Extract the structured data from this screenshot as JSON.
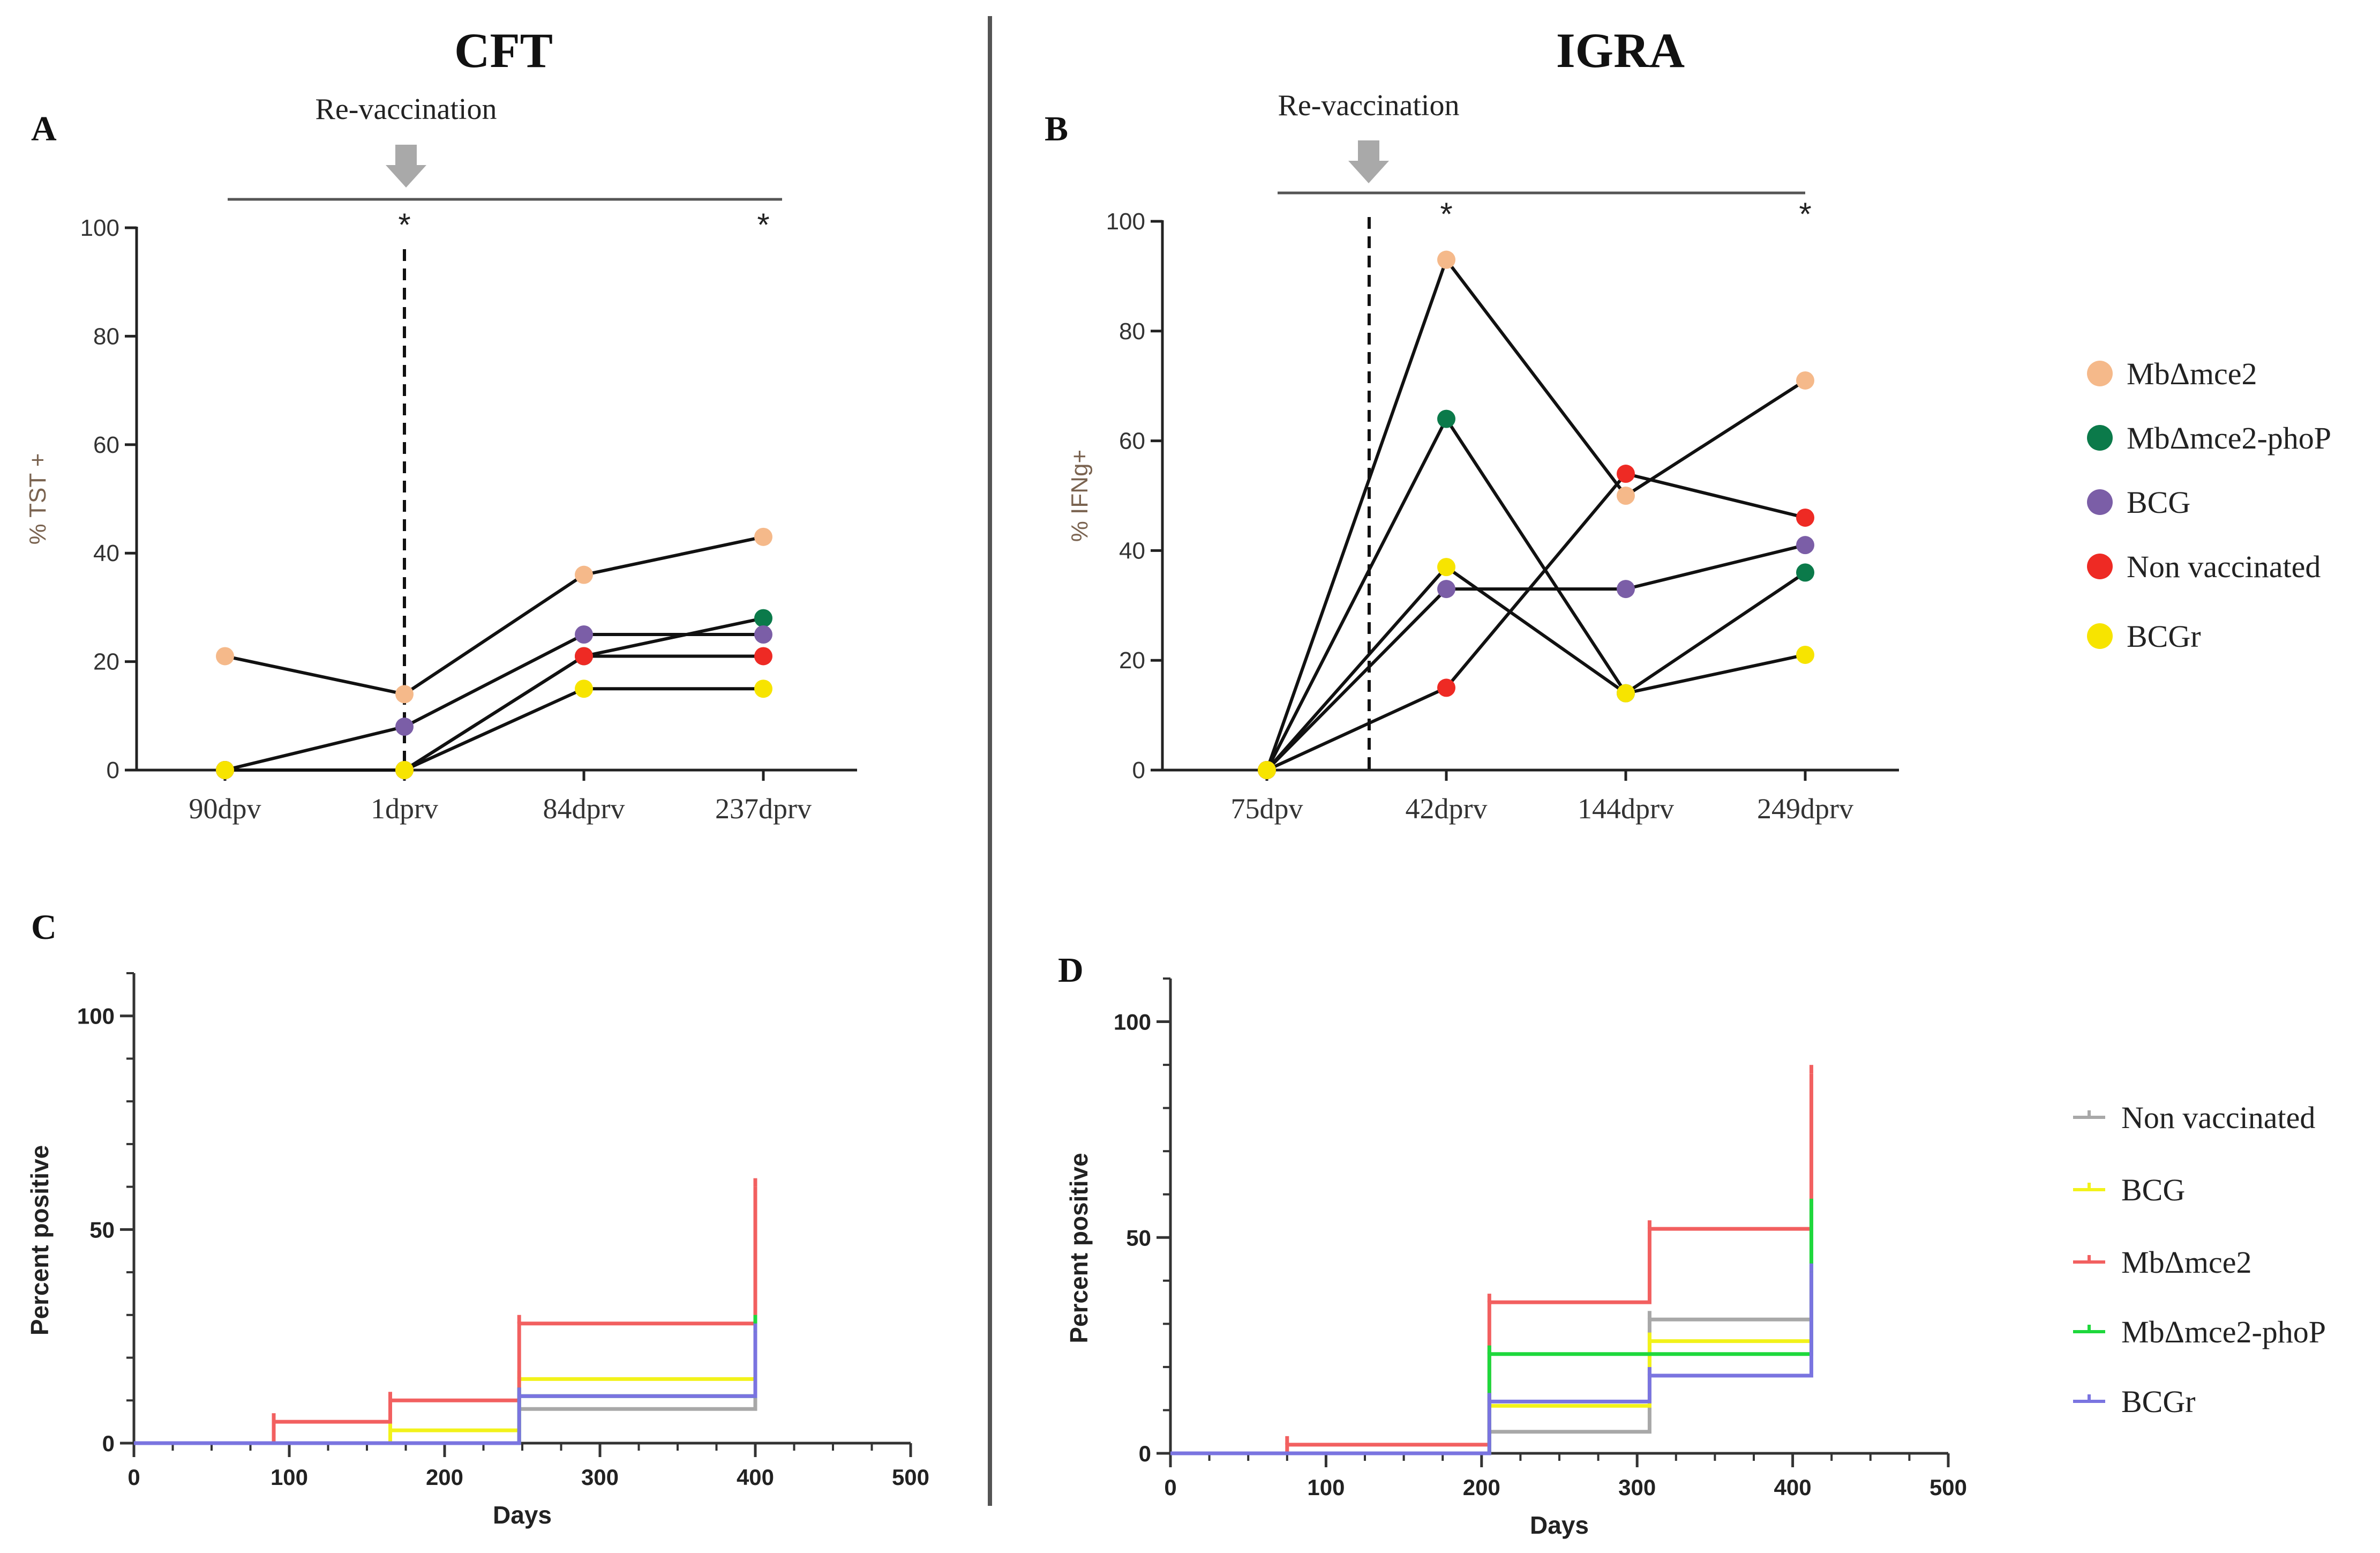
{
  "headers": {
    "left": "CFT",
    "right": "IGRA"
  },
  "panel_letters": {
    "a": "A",
    "b": "B",
    "c": "C",
    "d": "D"
  },
  "legend_top": [
    {
      "label": "MbΔmce2",
      "color": "#f5b98a"
    },
    {
      "label": "MbΔmce2-phoP",
      "color": "#0b7a4a"
    },
    {
      "label": "BCG",
      "color": "#7b5ea7"
    },
    {
      "label": "Non vaccinated",
      "color": "#ee2a24"
    },
    {
      "label": "BCGr",
      "color": "#f7e400"
    }
  ],
  "legend_bottom": [
    {
      "label": "Non vaccinated",
      "color": "#a8a8a8"
    },
    {
      "label": "BCG",
      "color": "#f2f21a"
    },
    {
      "label": "MbΔmce2",
      "color": "#f26060"
    },
    {
      "label": "MbΔmce2-phoP",
      "color": "#1ed83c"
    },
    {
      "label": "BCGr",
      "color": "#7a74e0"
    }
  ],
  "chart_data": [
    {
      "panel": "A",
      "type": "line",
      "title": "CFT",
      "ylabel": "% TST +",
      "xlabel": "",
      "categories": [
        "90dpv",
        "1dprv",
        "84dprv",
        "237dprv"
      ],
      "ylim": [
        0,
        100
      ],
      "yticks": [
        0,
        20,
        40,
        60,
        80,
        100
      ],
      "annotation": "Re-vaccination",
      "revaccination_at_category": 1,
      "significance": [
        {
          "category": 1,
          "label": "*"
        },
        {
          "category": 3,
          "label": "*"
        }
      ],
      "series": [
        {
          "name": "MbΔmce2",
          "color": "#f5b98a",
          "values": [
            21,
            14,
            36,
            43
          ]
        },
        {
          "name": "MbΔmce2-phoP",
          "color": "#0b7a4a",
          "values": [
            0,
            0,
            21,
            28
          ]
        },
        {
          "name": "BCG",
          "color": "#7b5ea7",
          "values": [
            0,
            8,
            25,
            25
          ]
        },
        {
          "name": "Non vaccinated",
          "color": "#ee2a24",
          "values": [
            0,
            0,
            21,
            21
          ]
        },
        {
          "name": "BCGr",
          "color": "#f7e400",
          "values": [
            0,
            0,
            15,
            15
          ]
        }
      ]
    },
    {
      "panel": "B",
      "type": "line",
      "title": "IGRA",
      "ylabel": "% IFNg+",
      "xlabel": "",
      "categories": [
        "75dpv",
        "42dprv",
        "144dprv",
        "249dprv"
      ],
      "ylim": [
        0,
        100
      ],
      "yticks": [
        0,
        20,
        40,
        60,
        80,
        100
      ],
      "annotation": "Re-vaccination",
      "revaccination_at_category": 0.57,
      "significance": [
        {
          "category": 1,
          "label": "*"
        },
        {
          "category": 3,
          "label": "*"
        }
      ],
      "series": [
        {
          "name": "MbΔmce2",
          "color": "#f5b98a",
          "values": [
            0,
            93,
            50,
            71
          ]
        },
        {
          "name": "MbΔmce2-phoP",
          "color": "#0b7a4a",
          "values": [
            0,
            64,
            14,
            36
          ]
        },
        {
          "name": "BCG",
          "color": "#7b5ea7",
          "values": [
            0,
            33,
            33,
            41
          ]
        },
        {
          "name": "Non vaccinated",
          "color": "#ee2a24",
          "values": [
            0,
            15,
            54,
            46
          ]
        },
        {
          "name": "BCGr",
          "color": "#f7e400",
          "values": [
            0,
            37,
            14,
            21
          ]
        }
      ]
    },
    {
      "panel": "C",
      "type": "line",
      "subtype": "step",
      "xlabel": "Days",
      "ylabel": "Percent positive",
      "xlim": [
        0,
        500
      ],
      "ylim": [
        0,
        110
      ],
      "xticks": [
        0,
        100,
        200,
        300,
        400,
        500
      ],
      "yticks": [
        0,
        50,
        100
      ],
      "series": [
        {
          "name": "Non vaccinated",
          "color": "#a8a8a8",
          "x": [
            0,
            90,
            90,
            248,
            248,
            400,
            400
          ],
          "y": [
            0,
            0,
            0,
            0,
            8,
            8,
            30
          ]
        },
        {
          "name": "BCG",
          "color": "#f2f21a",
          "x": [
            0,
            165,
            165,
            248,
            248,
            400,
            400
          ],
          "y": [
            0,
            0,
            3,
            3,
            15,
            15,
            38
          ]
        },
        {
          "name": "MbΔmce2",
          "color": "#f26060",
          "x": [
            0,
            90,
            90,
            165,
            165,
            248,
            248,
            400,
            400
          ],
          "y": [
            0,
            0,
            5,
            5,
            10,
            10,
            28,
            28,
            60
          ]
        },
        {
          "name": "MbΔmce2-phoP",
          "color": "#1ed83c",
          "x": [
            0,
            248,
            248,
            400,
            400
          ],
          "y": [
            0,
            0,
            11,
            11,
            28
          ]
        },
        {
          "name": "BCGr",
          "color": "#7a74e0",
          "x": [
            0,
            248,
            248,
            400,
            400
          ],
          "y": [
            0,
            0,
            11,
            11,
            26
          ]
        }
      ]
    },
    {
      "panel": "D",
      "type": "line",
      "subtype": "step",
      "xlabel": "Days",
      "ylabel": "Percent positive",
      "xlim": [
        0,
        500
      ],
      "ylim": [
        0,
        110
      ],
      "xticks": [
        0,
        100,
        200,
        300,
        400,
        500
      ],
      "yticks": [
        0,
        50,
        100
      ],
      "series": [
        {
          "name": "Non vaccinated",
          "color": "#a8a8a8",
          "x": [
            0,
            205,
            205,
            308,
            308,
            412,
            412
          ],
          "y": [
            0,
            0,
            5,
            5,
            31,
            31,
            50
          ]
        },
        {
          "name": "BCG",
          "color": "#f2f21a",
          "x": [
            0,
            205,
            205,
            308,
            308,
            412,
            412
          ],
          "y": [
            0,
            0,
            11,
            11,
            26,
            26,
            40
          ]
        },
        {
          "name": "MbΔmce2",
          "color": "#f26060",
          "x": [
            0,
            75,
            75,
            205,
            205,
            308,
            308,
            412,
            412
          ],
          "y": [
            0,
            0,
            2,
            2,
            35,
            35,
            52,
            52,
            88
          ]
        },
        {
          "name": "MbΔmce2-phoP",
          "color": "#1ed83c",
          "x": [
            0,
            205,
            205,
            308,
            308,
            412,
            412
          ],
          "y": [
            0,
            0,
            23,
            23,
            23,
            23,
            57
          ]
        },
        {
          "name": "BCGr",
          "color": "#7a74e0",
          "x": [
            0,
            205,
            205,
            308,
            308,
            412,
            412
          ],
          "y": [
            0,
            0,
            12,
            12,
            18,
            18,
            42
          ]
        }
      ]
    }
  ]
}
